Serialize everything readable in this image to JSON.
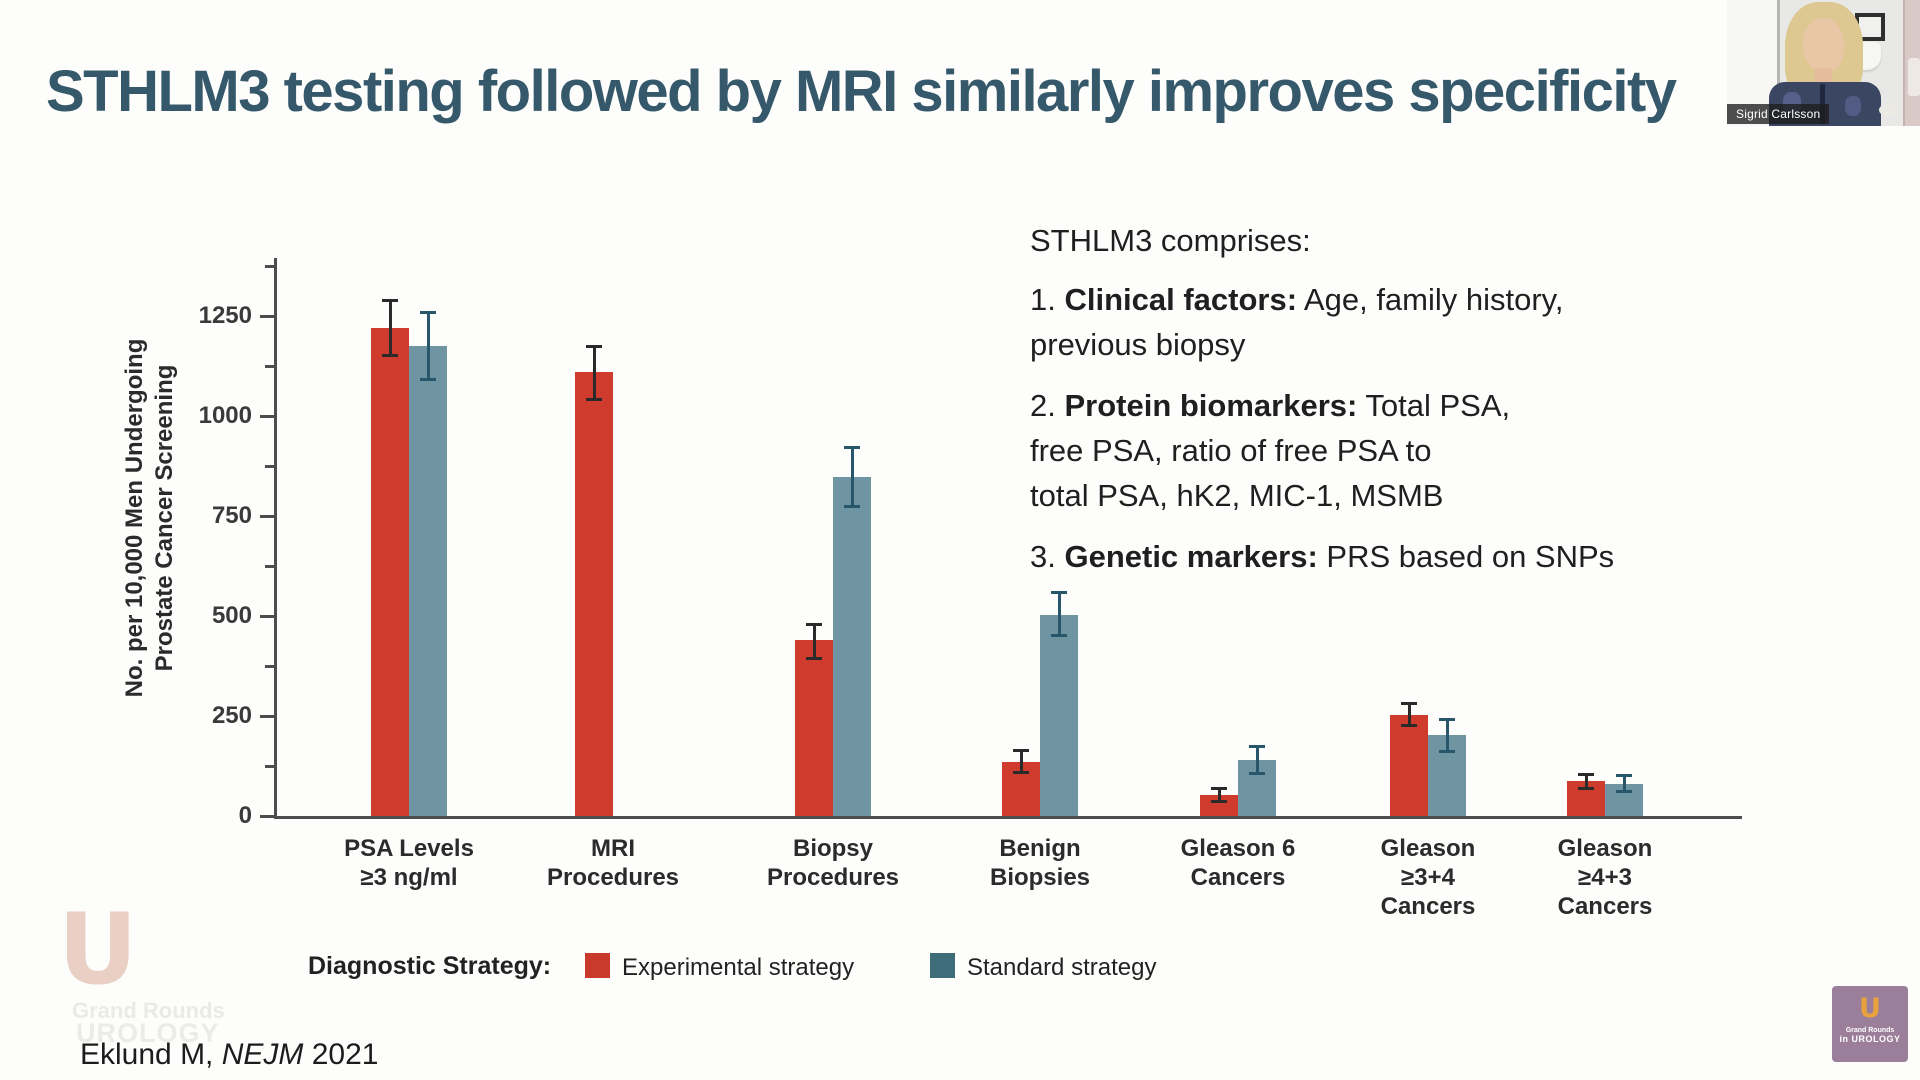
{
  "title": "STHLM3 testing followed by MRI similarly improves specificity",
  "webcam": {
    "name_label": "Sigrid Carlsson"
  },
  "sidepanel": {
    "heading": "STHLM3 comprises:",
    "paragraphs": [
      {
        "lines": [
          [
            {
              "t": "1. "
            },
            {
              "t": "Clinical factors:",
              "b": 1
            },
            {
              "t": " Age, family history,"
            }
          ],
          [
            {
              "t": "previous biopsy"
            }
          ]
        ]
      },
      {
        "lines": [
          [
            {
              "t": "2. "
            },
            {
              "t": "Protein biomarkers:",
              "b": 1
            },
            {
              "t": " Total PSA,"
            }
          ],
          [
            {
              "t": "free PSA, ratio of free PSA to"
            }
          ],
          [
            {
              "t": "total PSA, hK2, MIC-1, MSMB"
            }
          ]
        ]
      },
      {
        "lines": [
          [
            {
              "t": "3. "
            },
            {
              "t": "Genetic markers:",
              "b": 1
            },
            {
              "t": " PRS based on SNPs"
            }
          ]
        ]
      }
    ]
  },
  "chart_data": {
    "type": "bar",
    "ylabel_lines": [
      "No. per 10,000 Men Undergoing",
      "Prostate Cancer Screening"
    ],
    "ylim": [
      0,
      1390
    ],
    "yticks": [
      0,
      250,
      500,
      750,
      1000,
      1250
    ],
    "minor_ticks": [
      125,
      375,
      625,
      875,
      1125,
      1375
    ],
    "grid": false,
    "legend_position": "bottom",
    "legend_title": "Diagnostic Strategy:",
    "categories": [
      [
        "PSA Levels",
        "≥3 ng/ml"
      ],
      [
        "MRI",
        "Procedures"
      ],
      [
        "Biopsy",
        "Procedures"
      ],
      [
        "Benign",
        "Biopsies"
      ],
      [
        "Gleason 6",
        "Cancers"
      ],
      [
        "Gleason",
        "≥3+4",
        "Cancers"
      ],
      [
        "Gleason",
        "≥4+3",
        "Cancers"
      ]
    ],
    "series": [
      {
        "name": "Experimental strategy",
        "bar_color": "#cf3b2c",
        "legend_color": "#c9392c",
        "error_color": "#2a2a2a",
        "values": [
          1220,
          1110,
          440,
          135,
          52,
          252,
          87
        ],
        "errors": [
          [
            1150,
            1290
          ],
          [
            1040,
            1175
          ],
          [
            392,
            480
          ],
          [
            107,
            165
          ],
          [
            35,
            70
          ],
          [
            225,
            282
          ],
          [
            68,
            105
          ]
        ]
      },
      {
        "name": "Standard strategy",
        "bar_color": "#7095a2",
        "legend_color": "#3e6c79",
        "error_color": "#28566b",
        "values": [
          1175,
          0,
          847,
          502,
          140,
          202,
          81
        ],
        "errors": [
          [
            1090,
            1260
          ],
          [
            0,
            0
          ],
          [
            772,
            922
          ],
          [
            450,
            560
          ],
          [
            105,
            175
          ],
          [
            160,
            242
          ],
          [
            60,
            102
          ]
        ]
      }
    ]
  },
  "citation": {
    "prefix": "Eklund M, ",
    "journal": "NEJM",
    "suffix": " 2021"
  },
  "watermark": {
    "letter": "U",
    "line1": "Grand Rounds",
    "line2": "UROLOGY"
  },
  "logo": {
    "letter": "U",
    "line1": "Grand Rounds",
    "line2": "in UROLOGY"
  }
}
